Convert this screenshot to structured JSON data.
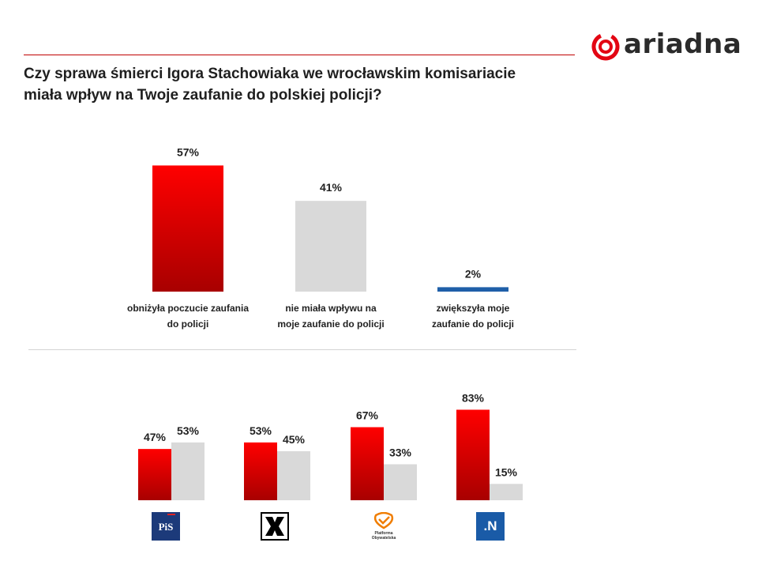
{
  "brand": {
    "logo_text": "ariadna",
    "accent": "#e30613"
  },
  "title_line1": "Czy sprawa śmierci Igora Stachowiaka we wrocławskim komisariacie",
  "title_line2": "miała wpływ na Twoje zaufanie do polskiej policji?",
  "colors": {
    "red": "#ff0000",
    "red_dark": "#a80000",
    "gray": "#d9d9d9",
    "blue": "#1f5fa8"
  },
  "chart_data": [
    {
      "type": "bar",
      "categories": [
        [
          "obniżyła poczucie zaufania",
          "do policji"
        ],
        [
          "nie miała wpływu na",
          "moje zaufanie do policji"
        ],
        [
          "zwiększyła moje",
          "zaufanie do policji"
        ]
      ],
      "values": [
        57,
        41,
        2
      ],
      "labels": [
        "57%",
        "41%",
        "2%"
      ],
      "bar_colors": [
        "red",
        "gray",
        "blue"
      ],
      "ylim": [
        0,
        60
      ]
    },
    {
      "type": "bar",
      "categories": [
        "PiS",
        "Kukiz'15",
        "Platforma Obywatelska",
        "Nowoczesna"
      ],
      "series": [
        {
          "values": [
            47,
            53,
            67,
            83
          ],
          "labels": [
            "47%",
            "53%",
            "67%",
            "83%"
          ],
          "color": "red"
        },
        {
          "values": [
            53,
            45,
            33,
            15
          ],
          "labels": [
            "53%",
            "45%",
            "33%",
            "15%"
          ],
          "color": "gray"
        }
      ],
      "ylim": [
        0,
        90
      ]
    }
  ],
  "party_logos": {
    "pis_text": "PiS",
    "po_text": "Platforma Obywatelska",
    "nowoczesna_text": ".N",
    "icons": [
      "pis-logo-icon",
      "kukiz-logo-icon",
      "platforma-logo-icon",
      "nowoczesna-logo-icon"
    ]
  }
}
